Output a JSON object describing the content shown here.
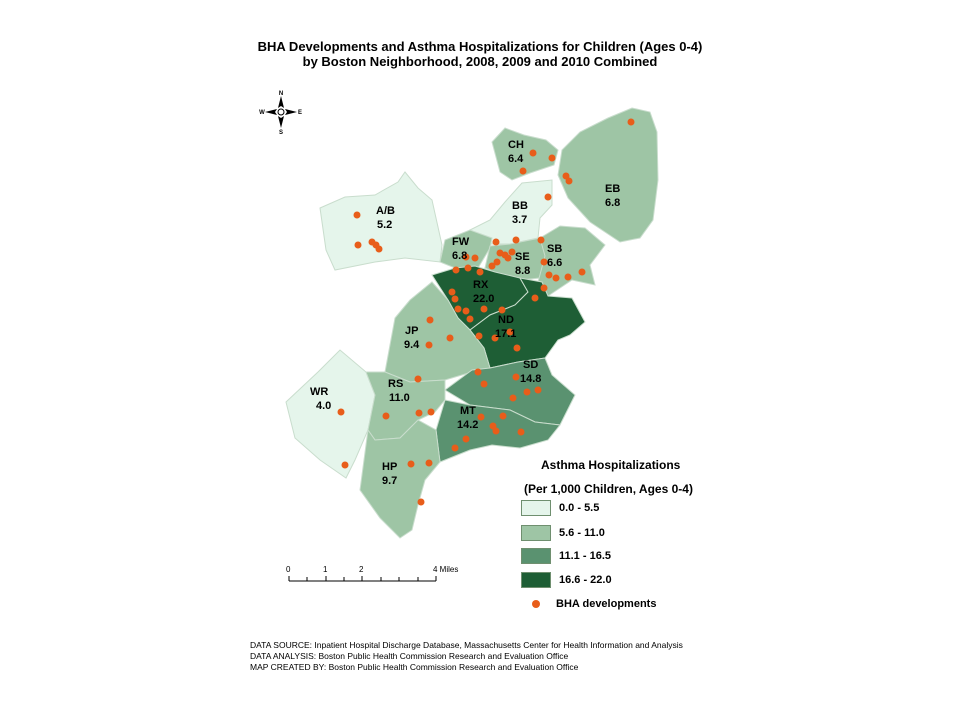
{
  "title": {
    "line1": "BHA Developments and Asthma Hospitalizations for Children (Ages 0-4)",
    "line2": "by Boston Neighborhood, 2008, 2009 and 2010 Combined"
  },
  "compass": {
    "n": "N",
    "s": "S",
    "e": "E",
    "w": "W"
  },
  "colors": {
    "class1": "#e5f5eb",
    "class2": "#9ec5a5",
    "class3": "#5a9270",
    "class4": "#1e5e35",
    "dot": "#e85d1a",
    "border": "#bfd7c6"
  },
  "neighborhoods": [
    {
      "code": "CH",
      "rate": "6.4"
    },
    {
      "code": "EB",
      "rate": "6.8"
    },
    {
      "code": "A/B",
      "rate": "5.2"
    },
    {
      "code": "BB",
      "rate": "3.7"
    },
    {
      "code": "FW",
      "rate": "6.8"
    },
    {
      "code": "SE",
      "rate": "8.8"
    },
    {
      "code": "SB",
      "rate": "6.6"
    },
    {
      "code": "RX",
      "rate": "22.0"
    },
    {
      "code": "ND",
      "rate": "17.1"
    },
    {
      "code": "JP",
      "rate": "9.4"
    },
    {
      "code": "SD",
      "rate": "14.8"
    },
    {
      "code": "WR",
      "rate": "4.0"
    },
    {
      "code": "RS",
      "rate": "11.0"
    },
    {
      "code": "MT",
      "rate": "14.2"
    },
    {
      "code": "HP",
      "rate": "9.7"
    }
  ],
  "legend": {
    "title": "Asthma Hospitalizations",
    "subtitle": "(Per 1,000 Children, Ages 0-4)",
    "classes": [
      "0.0 - 5.5",
      "5.6 - 11.0",
      "11.1 - 16.5",
      "16.6 - 22.0"
    ],
    "dot_label": "BHA developments"
  },
  "scalebar": {
    "ticks": [
      "0",
      "1",
      "2",
      "4 Miles"
    ]
  },
  "credits": [
    "DATA SOURCE: Inpatient Hospital Discharge Database, Massachusetts Center for Health Information and Analysis",
    "DATA ANALYSIS: Boston Public Health Commission Research and Evaluation Office",
    "MAP CREATED BY: Boston Public Health Commission Research and Evaluation Office"
  ]
}
